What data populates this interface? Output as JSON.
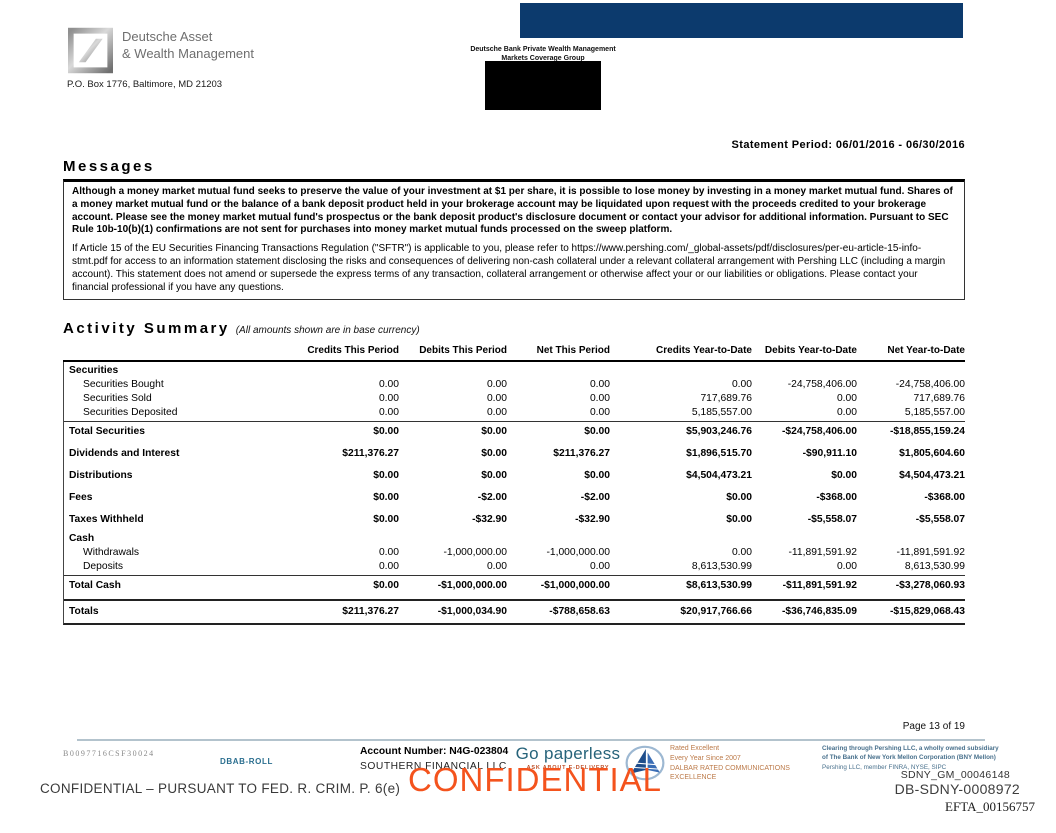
{
  "header": {
    "brand_line1": "Deutsche Asset",
    "brand_line2": "& Wealth Management",
    "po_box": "P.O. Box 1776, Baltimore, MD 21203",
    "dept_line1": "Deutsche Bank Private Wealth Management",
    "dept_line2": "Markets Coverage Group",
    "statement_period": "Statement Period: 06/01/2016 - 06/30/2016"
  },
  "messages": {
    "title": "Messages",
    "paragraph1": "Although a money market mutual fund seeks to preserve the value of your investment at $1 per share, it is possible to lose money by investing in a money market mutual fund. Shares of a money market mutual fund or the balance of a bank deposit product held in your brokerage account may be liquidated upon request with the proceeds credited to your brokerage account. Please see the money market mutual fund's prospectus or the bank deposit product's disclosure document or contact your advisor for additional information. Pursuant to SEC Rule 10b-10(b)(1) confirmations are not sent for purchases into money market mutual funds processed on the sweep platform.",
    "paragraph2": "If Article 15 of the EU Securities Financing Transactions Regulation (\"SFTR\") is applicable to you, please refer to https://www.pershing.com/_global-assets/pdf/disclosures/per-eu-article-15-info-stmt.pdf for access to an information statement disclosing the risks and consequences of delivering non-cash collateral under a relevant collateral arrangement with Pershing LLC (including a margin account). This statement does not amend or supersede the express terms of any transaction, collateral arrangement or otherwise affect your or our liabilities or obligations. Please contact your financial professional if you have any questions."
  },
  "activity_summary": {
    "title": "Activity Summary",
    "subtitle": "(All amounts shown are in base currency)",
    "columns": [
      "Credits This Period",
      "Debits This Period",
      "Net This Period",
      "Credits Year-to-Date",
      "Debits Year-to-Date",
      "Net Year-to-Date"
    ],
    "rows": [
      {
        "label": "Securities",
        "type": "group-header"
      },
      {
        "label": "Securities Bought",
        "type": "item",
        "values": [
          "0.00",
          "0.00",
          "0.00",
          "0.00",
          "-24,758,406.00",
          "-24,758,406.00"
        ]
      },
      {
        "label": "Securities Sold",
        "type": "item",
        "values": [
          "0.00",
          "0.00",
          "0.00",
          "717,689.76",
          "0.00",
          "717,689.76"
        ]
      },
      {
        "label": "Securities Deposited",
        "type": "item",
        "values": [
          "0.00",
          "0.00",
          "0.00",
          "5,185,557.00",
          "0.00",
          "5,185,557.00"
        ]
      },
      {
        "label": "Total Securities",
        "type": "total",
        "values": [
          "$0.00",
          "$0.00",
          "$0.00",
          "$5,903,246.76",
          "-$24,758,406.00",
          "-$18,855,159.24"
        ]
      },
      {
        "label": "Dividends and Interest",
        "type": "bold",
        "values": [
          "$211,376.27",
          "$0.00",
          "$211,376.27",
          "$1,896,515.70",
          "-$90,911.10",
          "$1,805,604.60"
        ]
      },
      {
        "label": "Distributions",
        "type": "bold",
        "values": [
          "$0.00",
          "$0.00",
          "$0.00",
          "$4,504,473.21",
          "$0.00",
          "$4,504,473.21"
        ]
      },
      {
        "label": "Fees",
        "type": "bold",
        "values": [
          "$0.00",
          "-$2.00",
          "-$2.00",
          "$0.00",
          "-$368.00",
          "-$368.00"
        ]
      },
      {
        "label": "Taxes Withheld",
        "type": "bold",
        "values": [
          "$0.00",
          "-$32.90",
          "-$32.90",
          "$0.00",
          "-$5,558.07",
          "-$5,558.07"
        ]
      },
      {
        "label": "Cash",
        "type": "group-header"
      },
      {
        "label": "Withdrawals",
        "type": "item",
        "values": [
          "0.00",
          "-1,000,000.00",
          "-1,000,000.00",
          "0.00",
          "-11,891,591.92",
          "-11,891,591.92"
        ]
      },
      {
        "label": "Deposits",
        "type": "item",
        "values": [
          "0.00",
          "0.00",
          "0.00",
          "8,613,530.99",
          "0.00",
          "8,613,530.99"
        ]
      },
      {
        "label": "Total Cash",
        "type": "total",
        "values": [
          "$0.00",
          "-$1,000,000.00",
          "-$1,000,000.00",
          "$8,613,530.99",
          "-$11,891,591.92",
          "-$3,278,060.93"
        ]
      },
      {
        "label": "Totals",
        "type": "grand-total",
        "values": [
          "$211,376.27",
          "-$1,000,034.90",
          "-$788,658.63",
          "$20,917,766.66",
          "-$36,746,835.09",
          "-$15,829,068.43"
        ]
      }
    ]
  },
  "footer": {
    "page_number": "Page 13 of 19",
    "doc_code": "B0097716CSF30024",
    "form_code": "DBAB-ROLL",
    "account_number": "Account Number: N4G-023804",
    "account_name": "SOUTHERN FINANCIAL LLC",
    "go_paperless": "Go paperless",
    "go_paperless_sub": "ASK ABOUT E-DELIVERY",
    "dalbar_line1": "Rated Excellent",
    "dalbar_line2": "Every Year Since 2007",
    "dalbar_line3": "DALBAR RATED COMMUNICATIONS",
    "dalbar_line4": "EXCELLENCE",
    "pershing_line1": "Clearing through Pershing LLC, a wholly owned subsidiary",
    "pershing_line2": "of The Bank of New York Mellon Corporation (BNY Mellon)",
    "pershing_line3": "Pershing LLC, member FINRA, NYSE, SIPC",
    "bates1": "SDNY_GM_00046148",
    "bates2": "DB-SDNY-0008972",
    "bates3": "EFTA_00156757",
    "watermark": "CONFIDENTIAL",
    "confidential_notice": "CONFIDENTIAL – PURSUANT TO FED. R. CRIM. P. 6(e)"
  },
  "colors": {
    "navy_bar": "#0c3a6d",
    "watermark_orange": "#f4531d",
    "teal_text": "#26637a",
    "dalbar_orange": "#bc7a49",
    "pershing_blue": "#48708c"
  }
}
